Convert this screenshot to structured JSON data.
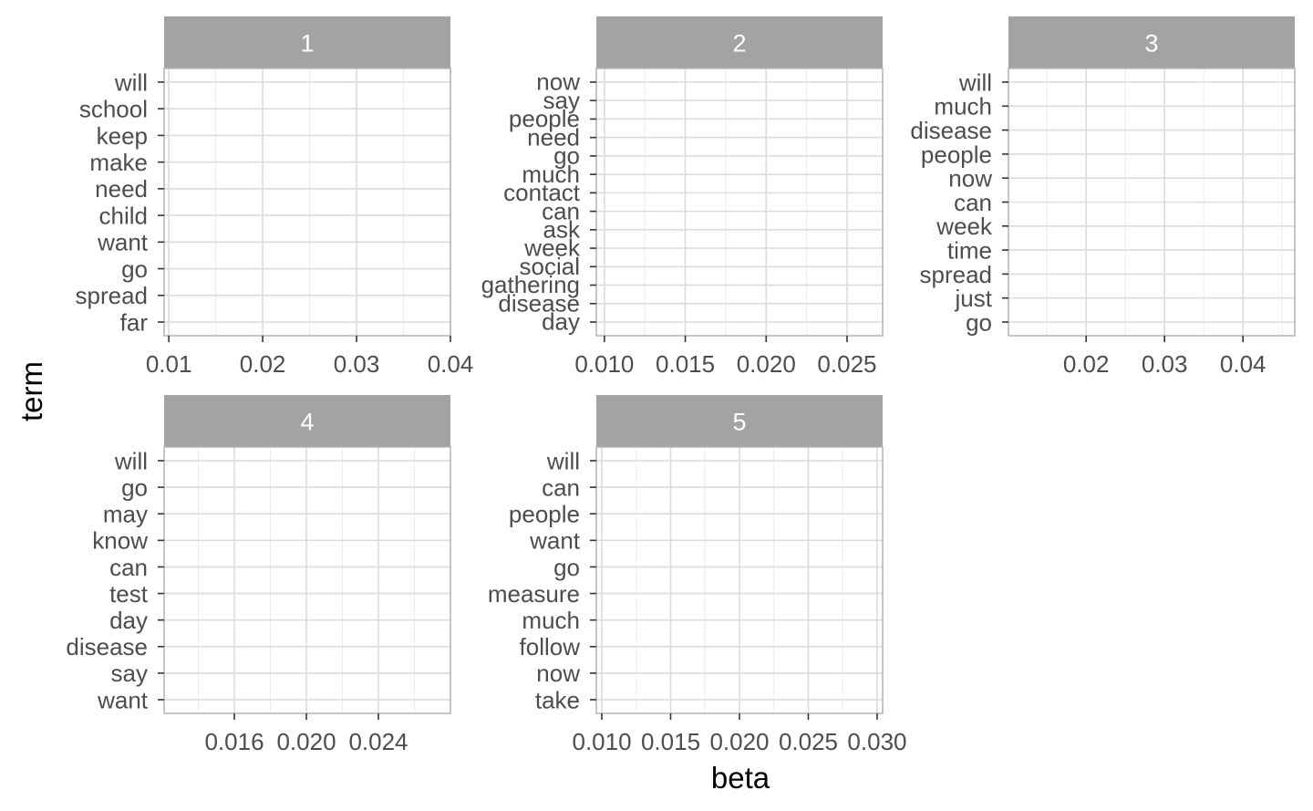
{
  "chart_data": {
    "type": "bar",
    "facet_by": "topic",
    "xlabel": "beta",
    "ylabel": "term",
    "grid": true,
    "colors": {
      "strip_background": "#a3a3a3",
      "strip_text": "#ffffff",
      "panel_border": "#b3b3b3",
      "grid_major": "#dcdcdc",
      "grid_minor": "#ececec",
      "tick_text": "#4d4d4d"
    },
    "panels": [
      {
        "topic": "1",
        "terms": [
          "will",
          "school",
          "keep",
          "make",
          "need",
          "child",
          "want",
          "go",
          "spread",
          "far"
        ],
        "xlim": [
          0.0095,
          0.04
        ],
        "xticks": [
          0.01,
          0.02,
          0.03,
          0.04
        ],
        "xtick_labels": [
          "0.01",
          "0.02",
          "0.03",
          "0.04"
        ]
      },
      {
        "topic": "2",
        "terms": [
          "now",
          "say",
          "people",
          "need",
          "go",
          "much",
          "contact",
          "can",
          "ask",
          "week",
          "social",
          "gathering",
          "disease",
          "day"
        ],
        "xlim": [
          0.0095,
          0.0272
        ],
        "xticks": [
          0.01,
          0.015,
          0.02,
          0.025
        ],
        "xtick_labels": [
          "0.010",
          "0.015",
          "0.020",
          "0.025"
        ]
      },
      {
        "topic": "3",
        "terms": [
          "will",
          "much",
          "disease",
          "people",
          "now",
          "can",
          "week",
          "time",
          "spread",
          "just",
          "go"
        ],
        "xlim": [
          0.0101,
          0.0466
        ],
        "xticks": [
          0.02,
          0.03,
          0.04
        ],
        "xtick_labels": [
          "0.02",
          "0.03",
          "0.04"
        ]
      },
      {
        "topic": "4",
        "terms": [
          "will",
          "go",
          "may",
          "know",
          "can",
          "test",
          "day",
          "disease",
          "say",
          "want"
        ],
        "xlim": [
          0.0121,
          0.028
        ],
        "xticks": [
          0.016,
          0.02,
          0.024
        ],
        "xtick_labels": [
          "0.016",
          "0.020",
          "0.024"
        ]
      },
      {
        "topic": "5",
        "terms": [
          "will",
          "can",
          "people",
          "want",
          "go",
          "measure",
          "much",
          "follow",
          "now",
          "take"
        ],
        "xlim": [
          0.0096,
          0.0304
        ],
        "xticks": [
          0.01,
          0.015,
          0.02,
          0.025,
          0.03
        ],
        "xtick_labels": [
          "0.010",
          "0.015",
          "0.020",
          "0.025",
          "0.030"
        ]
      }
    ]
  }
}
